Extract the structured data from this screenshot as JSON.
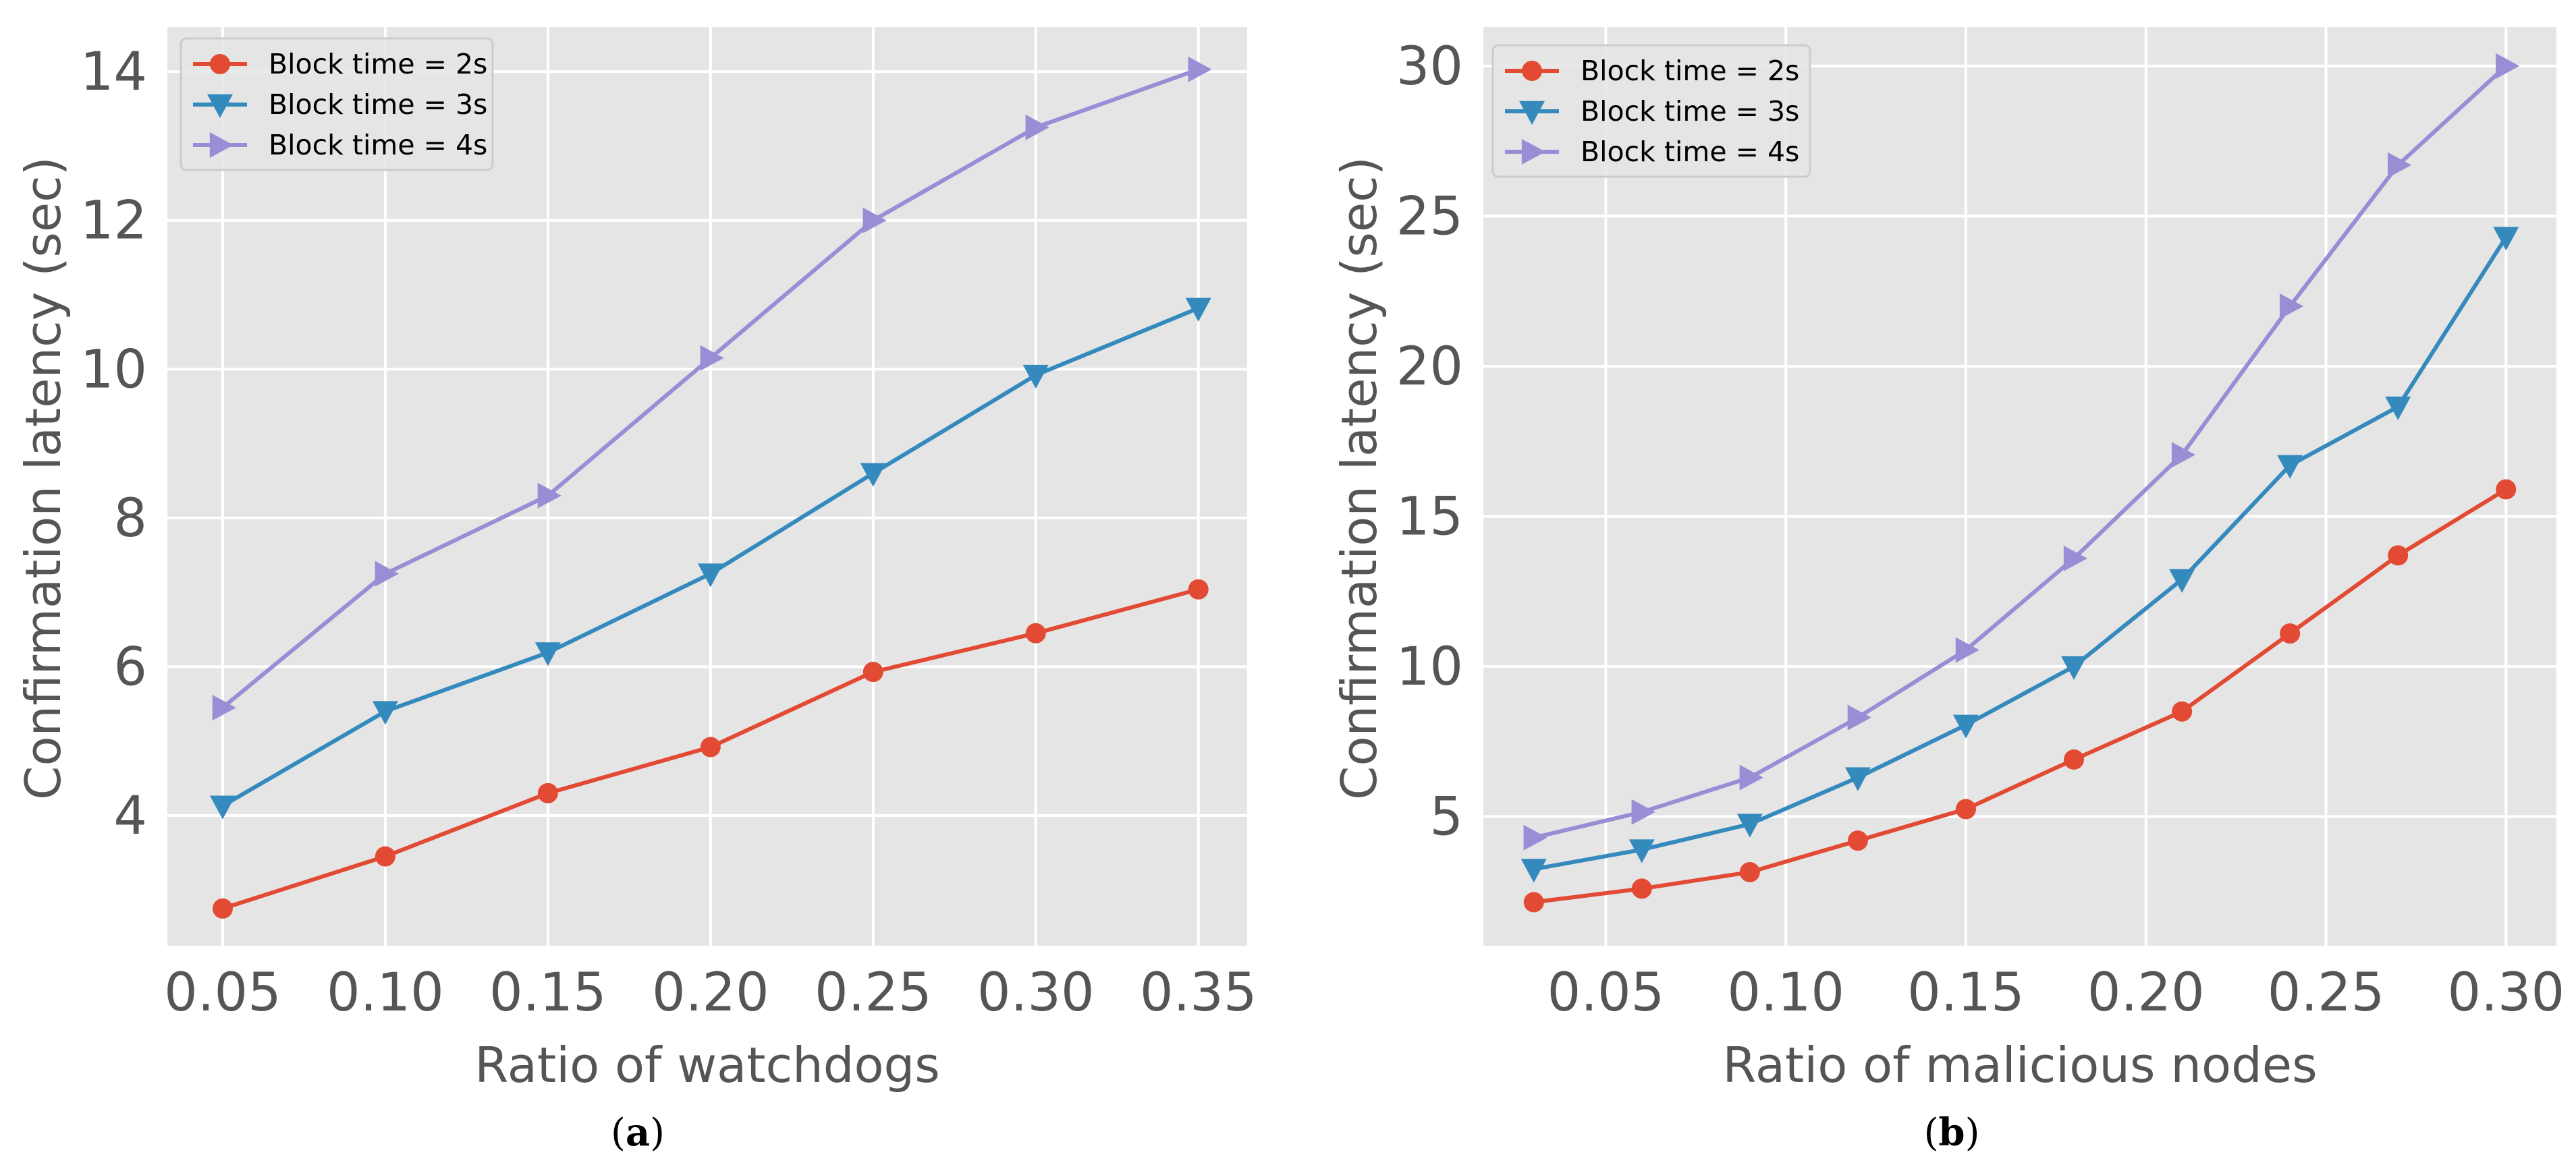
{
  "colors": {
    "background": "#e5e5e5",
    "grid": "#ffffff",
    "text": "#555555",
    "series": [
      "#e24a33",
      "#348abd",
      "#988ed5"
    ]
  },
  "chart_data": [
    {
      "type": "line",
      "panel": "a",
      "caption": "(a)",
      "caption_letter": "a",
      "title": "",
      "xlabel": "Ratio of watchdogs",
      "ylabel": "Confirmation latency (sec)",
      "x": [
        0.05,
        0.1,
        0.15,
        0.2,
        0.25,
        0.3,
        0.35
      ],
      "xticks": [
        0.05,
        0.1,
        0.15,
        0.2,
        0.25,
        0.3,
        0.35
      ],
      "xtick_labels": [
        "0.05",
        "0.10",
        "0.15",
        "0.20",
        "0.25",
        "0.30",
        "0.35"
      ],
      "yticks": [
        4,
        6,
        8,
        10,
        12,
        14
      ],
      "ytick_labels": [
        "4",
        "6",
        "8",
        "10",
        "12",
        "14"
      ],
      "xlim": [
        0.033,
        0.365
      ],
      "ylim": [
        2.25,
        14.6
      ],
      "grid": true,
      "legend_position": "top-left",
      "series": [
        {
          "name": "Block time = 2s",
          "marker": "circle",
          "values": [
            2.75,
            3.45,
            4.3,
            4.92,
            5.93,
            6.45,
            7.04
          ]
        },
        {
          "name": "Block time = 3s",
          "marker": "triangle-down",
          "values": [
            4.13,
            5.4,
            6.19,
            7.25,
            8.6,
            9.92,
            10.82
          ]
        },
        {
          "name": "Block time = 4s",
          "marker": "triangle-right",
          "values": [
            5.45,
            7.25,
            8.3,
            10.15,
            12.0,
            13.25,
            14.03
          ]
        }
      ]
    },
    {
      "type": "line",
      "panel": "b",
      "caption": "(b)",
      "caption_letter": "b",
      "title": "",
      "xlabel": "Ratio of malicious nodes",
      "ylabel": "Confirmation latency (sec)",
      "x": [
        0.03,
        0.06,
        0.09,
        0.12,
        0.15,
        0.18,
        0.21,
        0.24,
        0.27,
        0.3
      ],
      "xticks": [
        0.05,
        0.1,
        0.15,
        0.2,
        0.25,
        0.3
      ],
      "xtick_labels": [
        "0.05",
        "0.10",
        "0.15",
        "0.20",
        "0.25",
        "0.30"
      ],
      "yticks": [
        5,
        10,
        15,
        20,
        25,
        30
      ],
      "ytick_labels": [
        "5",
        "10",
        "15",
        "20",
        "25",
        "30"
      ],
      "xlim": [
        0.016,
        0.314
      ],
      "ylim": [
        0.7,
        31.3
      ],
      "grid": true,
      "legend_position": "top-left",
      "series": [
        {
          "name": "Block time = 2s",
          "marker": "circle",
          "values": [
            2.15,
            2.6,
            3.15,
            4.2,
            5.25,
            6.9,
            8.5,
            11.1,
            13.7,
            15.9
          ]
        },
        {
          "name": "Block time = 3s",
          "marker": "triangle-down",
          "values": [
            3.25,
            3.9,
            4.75,
            6.3,
            8.05,
            10.0,
            12.9,
            16.7,
            18.65,
            24.3
          ]
        },
        {
          "name": "Block time = 4s",
          "marker": "triangle-right",
          "values": [
            4.3,
            5.15,
            6.3,
            8.3,
            10.55,
            13.6,
            17.05,
            22.0,
            26.7,
            30.0
          ]
        }
      ]
    }
  ]
}
